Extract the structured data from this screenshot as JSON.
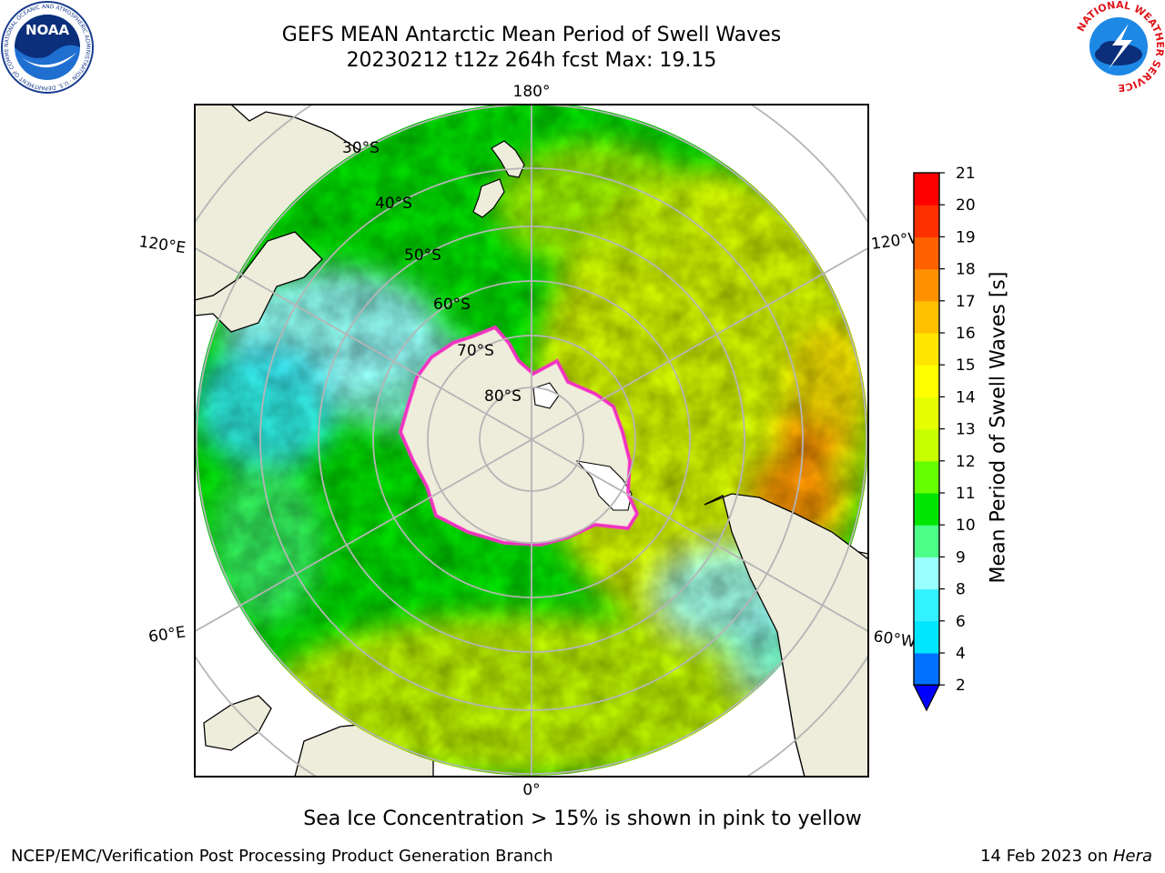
{
  "title": {
    "line1": "GEFS MEAN Antarctic Mean Period of Swell Waves",
    "line2": "20230212 t12z 264h fcst   Max: 19.15"
  },
  "map": {
    "longitude_labels": {
      "top": "180°",
      "bottom": "0°",
      "left_upper": "120°E",
      "left_lower": "60°E",
      "right_upper": "120°W",
      "right_lower": "60°W"
    },
    "latitude_labels": [
      "30°S",
      "40°S",
      "50°S",
      "60°S",
      "70°S",
      "80°S"
    ],
    "colors": {
      "land": "#eeecdb",
      "grid": "#b5b5b5",
      "sea_ice": "#ff33cc"
    }
  },
  "colorbar": {
    "label": "Mean Period of Swell Waves [s]",
    "ticks": [
      "2",
      "4",
      "6",
      "8",
      "9",
      "10",
      "11",
      "12",
      "13",
      "14",
      "15",
      "16",
      "17",
      "18",
      "19",
      "20",
      "21"
    ],
    "colors": [
      "#0070ff",
      "#00e6ff",
      "#33f2ff",
      "#99ffff",
      "#4dff88",
      "#00e600",
      "#66ff00",
      "#c8ff00",
      "#e6ff00",
      "#ffff00",
      "#ffe600",
      "#ffc000",
      "#ff9000",
      "#ff6000",
      "#ff3000",
      "#ff0000"
    ],
    "extend_color": "#0000ff"
  },
  "footer": {
    "note": "Sea Ice Concentration > 15% is shown in pink to yellow",
    "credit": "NCEP/EMC/Verification Post Processing Product Generation Branch",
    "date_prefix": "14 Feb 2023 on ",
    "host": "Hera"
  },
  "logos": {
    "noaa": {
      "text": "NOAA",
      "ring": "NATIONAL OCEANIC AND ATMOSPHERIC ADMINISTRATION · U.S. DEPARTMENT OF COMMERCE"
    },
    "nws": {
      "ring": "NATIONAL WEATHER SERVICE"
    }
  }
}
